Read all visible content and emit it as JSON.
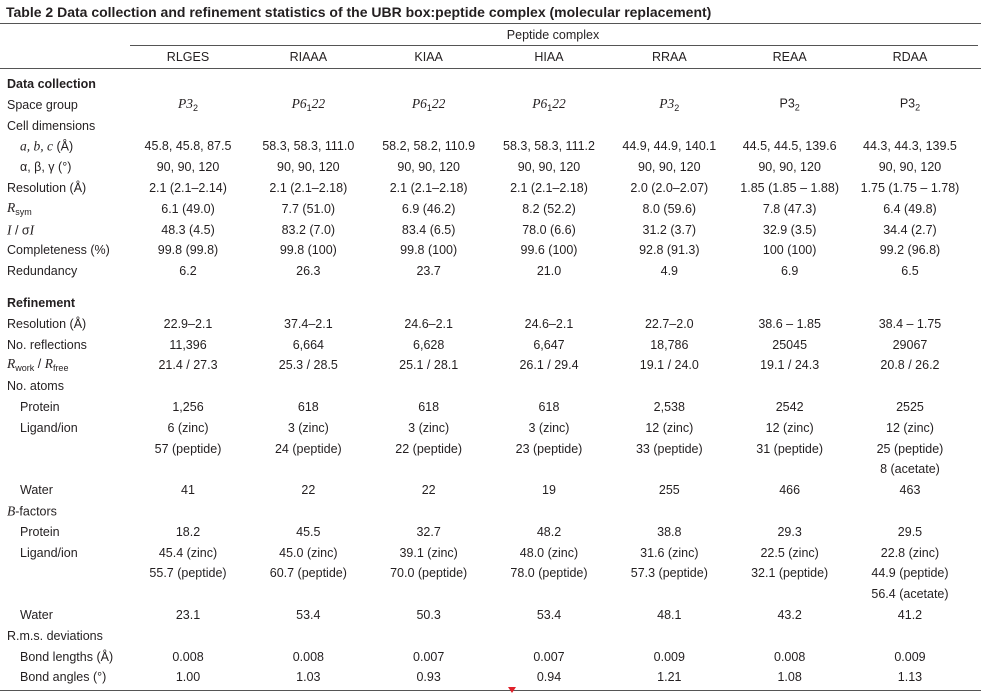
{
  "title": "Table 2  Data collection and refinement statistics of the UBR box:peptide complex (molecular replacement)",
  "table": {
    "group_header": "Peptide complex",
    "columns": [
      "RLGES",
      "RIAAA",
      "KIAA",
      "HIAA",
      "RRAA",
      "REAA",
      "RDAA"
    ],
    "sections": [
      {
        "title": "Data collection",
        "rows": [
          {
            "label": "Space group",
            "values": [
              [
                {
                  "text": "P3",
                  "italic": true
                },
                {
                  "text": "2",
                  "sub": true
                }
              ],
              [
                {
                  "text": "P6",
                  "italic": true
                },
                {
                  "text": "1",
                  "sub": true
                },
                {
                  "text": "22",
                  "italic": true
                }
              ],
              [
                {
                  "text": "P6",
                  "italic": true
                },
                {
                  "text": "1",
                  "sub": true
                },
                {
                  "text": "22",
                  "italic": true
                }
              ],
              [
                {
                  "text": "P6",
                  "italic": true
                },
                {
                  "text": "1",
                  "sub": true
                },
                {
                  "text": "22",
                  "italic": true
                }
              ],
              [
                {
                  "text": "P3",
                  "italic": true
                },
                {
                  "text": "2",
                  "sub": true
                }
              ],
              [
                {
                  "text": "P3"
                },
                {
                  "text": "2",
                  "sub": true
                }
              ],
              [
                {
                  "text": "P3"
                },
                {
                  "text": "2",
                  "sub": true
                }
              ]
            ]
          },
          {
            "label": "Cell dimensions",
            "rows": [
              {
                "label": [
                  {
                    "text": "a, b, c",
                    "italic": true
                  },
                  {
                    "text": " (Å)"
                  }
                ],
                "values": [
                  "45.8, 45.8, 87.5",
                  "58.3, 58.3, 111.0",
                  "58.2, 58.2, 110.9",
                  "58.3, 58.3, 111.2",
                  "44.9, 44.9, 140.1",
                  "44.5, 44.5, 139.6",
                  "44.3, 44.3, 139.5"
                ]
              },
              {
                "label": "α, β, γ (°)",
                "values": [
                  "90, 90, 120",
                  "90, 90, 120",
                  "90, 90, 120",
                  "90, 90, 120",
                  "90, 90, 120",
                  "90, 90, 120",
                  "90, 90, 120"
                ]
              }
            ]
          },
          {
            "label": "Resolution (Å)",
            "values": [
              "2.1 (2.1–2.14)",
              "2.1 (2.1–2.18)",
              "2.1 (2.1–2.18)",
              "2.1 (2.1–2.18)",
              "2.0 (2.0–2.07)",
              "1.85 (1.85 – 1.88)",
              "1.75 (1.75 – 1.78)"
            ]
          },
          {
            "label": [
              {
                "text": "R",
                "italic": true
              },
              {
                "text": "sym",
                "sub": true
              }
            ],
            "values": [
              "6.1 (49.0)",
              "7.7 (51.0)",
              "6.9 (46.2)",
              "8.2 (52.2)",
              "8.0 (59.6)",
              "7.8 (47.3)",
              "6.4 (49.8)"
            ]
          },
          {
            "label": [
              {
                "text": "I",
                "italic": true
              },
              {
                "text": " / σ"
              },
              {
                "text": "I",
                "italic": true
              }
            ],
            "values": [
              "48.3 (4.5)",
              "83.2 (7.0)",
              "83.4 (6.5)",
              "78.0 (6.6)",
              "31.2 (3.7)",
              "32.9 (3.5)",
              "34.4 (2.7)"
            ]
          },
          {
            "label": "Completeness (%)",
            "values": [
              "99.8 (99.8)",
              "99.8 (100)",
              "99.8 (100)",
              "99.6 (100)",
              "92.8 (91.3)",
              "100 (100)",
              "99.2 (96.8)"
            ]
          },
          {
            "label": "Redundancy",
            "values": [
              "6.2",
              "26.3",
              "23.7",
              "21.0",
              "4.9",
              "6.9",
              "6.5"
            ]
          }
        ]
      },
      {
        "title": "Refinement",
        "rows": [
          {
            "label": "Resolution (Å)",
            "values": [
              "22.9–2.1",
              "37.4–2.1",
              "24.6–2.1",
              "24.6–2.1",
              "22.7–2.0",
              "38.6 – 1.85",
              "38.4 – 1.75"
            ]
          },
          {
            "label": "No. reflections",
            "values": [
              "11,396",
              "6,664",
              "6,628",
              "6,647",
              "18,786",
              "25045",
              "29067"
            ]
          },
          {
            "label": [
              {
                "text": "R",
                "italic": true
              },
              {
                "text": "work",
                "sub": true
              },
              {
                "text": " / "
              },
              {
                "text": "R",
                "italic": true
              },
              {
                "text": "free",
                "sub": true
              }
            ],
            "values": [
              "21.4 / 27.3",
              "25.3 / 28.5",
              "25.1 / 28.1",
              "26.1 / 29.4",
              "19.1 / 24.0",
              "19.1 / 24.3",
              "20.8 / 26.2"
            ]
          },
          {
            "label": "No. atoms",
            "rows": [
              {
                "label": "Protein",
                "values": [
                  "1,256",
                  "618",
                  "618",
                  "618",
                  "2,538",
                  "2542",
                  "2525"
                ]
              },
              {
                "label": "Ligand/ion",
                "values": [
                  [
                    "6 (zinc)",
                    "57 (peptide)"
                  ],
                  [
                    "3 (zinc)",
                    "24 (peptide)"
                  ],
                  [
                    "3 (zinc)",
                    "22 (peptide)"
                  ],
                  [
                    "3 (zinc)",
                    "23 (peptide)"
                  ],
                  [
                    "12 (zinc)",
                    "33 (peptide)"
                  ],
                  [
                    "12 (zinc)",
                    "31 (peptide)"
                  ],
                  [
                    "12 (zinc)",
                    "25 (peptide)",
                    "8 (acetate)"
                  ]
                ]
              },
              {
                "label": "Water",
                "values": [
                  "41",
                  "22",
                  "22",
                  "19",
                  "255",
                  "466",
                  "463"
                ]
              }
            ]
          },
          {
            "label": [
              {
                "text": "B",
                "italic": true
              },
              {
                "text": "-factors"
              }
            ],
            "rows": [
              {
                "label": "Protein",
                "values": [
                  "18.2",
                  "45.5",
                  "32.7",
                  "48.2",
                  "38.8",
                  "29.3",
                  "29.5"
                ]
              },
              {
                "label": "Ligand/ion",
                "values": [
                  [
                    "45.4 (zinc)",
                    "55.7 (peptide)"
                  ],
                  [
                    "45.0 (zinc)",
                    "60.7 (peptide)"
                  ],
                  [
                    "39.1 (zinc)",
                    "70.0 (peptide)"
                  ],
                  [
                    "48.0 (zinc)",
                    "78.0 (peptide)"
                  ],
                  [
                    "31.6 (zinc)",
                    "57.3 (peptide)"
                  ],
                  [
                    "22.5 (zinc)",
                    "32.1 (peptide)"
                  ],
                  [
                    "22.8 (zinc)",
                    "44.9 (peptide)",
                    "56.4 (acetate)"
                  ]
                ]
              },
              {
                "label": "Water",
                "values": [
                  "23.1",
                  "53.4",
                  "50.3",
                  "53.4",
                  "48.1",
                  "43.2",
                  "41.2"
                ]
              }
            ]
          },
          {
            "label": "R.m.s. deviations",
            "rows": [
              {
                "label": "Bond lengths (Å)",
                "values": [
                  "0.008",
                  "0.008",
                  "0.007",
                  "0.007",
                  "0.009",
                  "0.008",
                  "0.009"
                ]
              },
              {
                "label": "Bond angles (°)",
                "values": [
                  "1.00",
                  "1.03",
                  "0.93",
                  "0.94",
                  "1.21",
                  "1.08",
                  "1.13"
                ]
              }
            ]
          }
        ]
      }
    ]
  }
}
